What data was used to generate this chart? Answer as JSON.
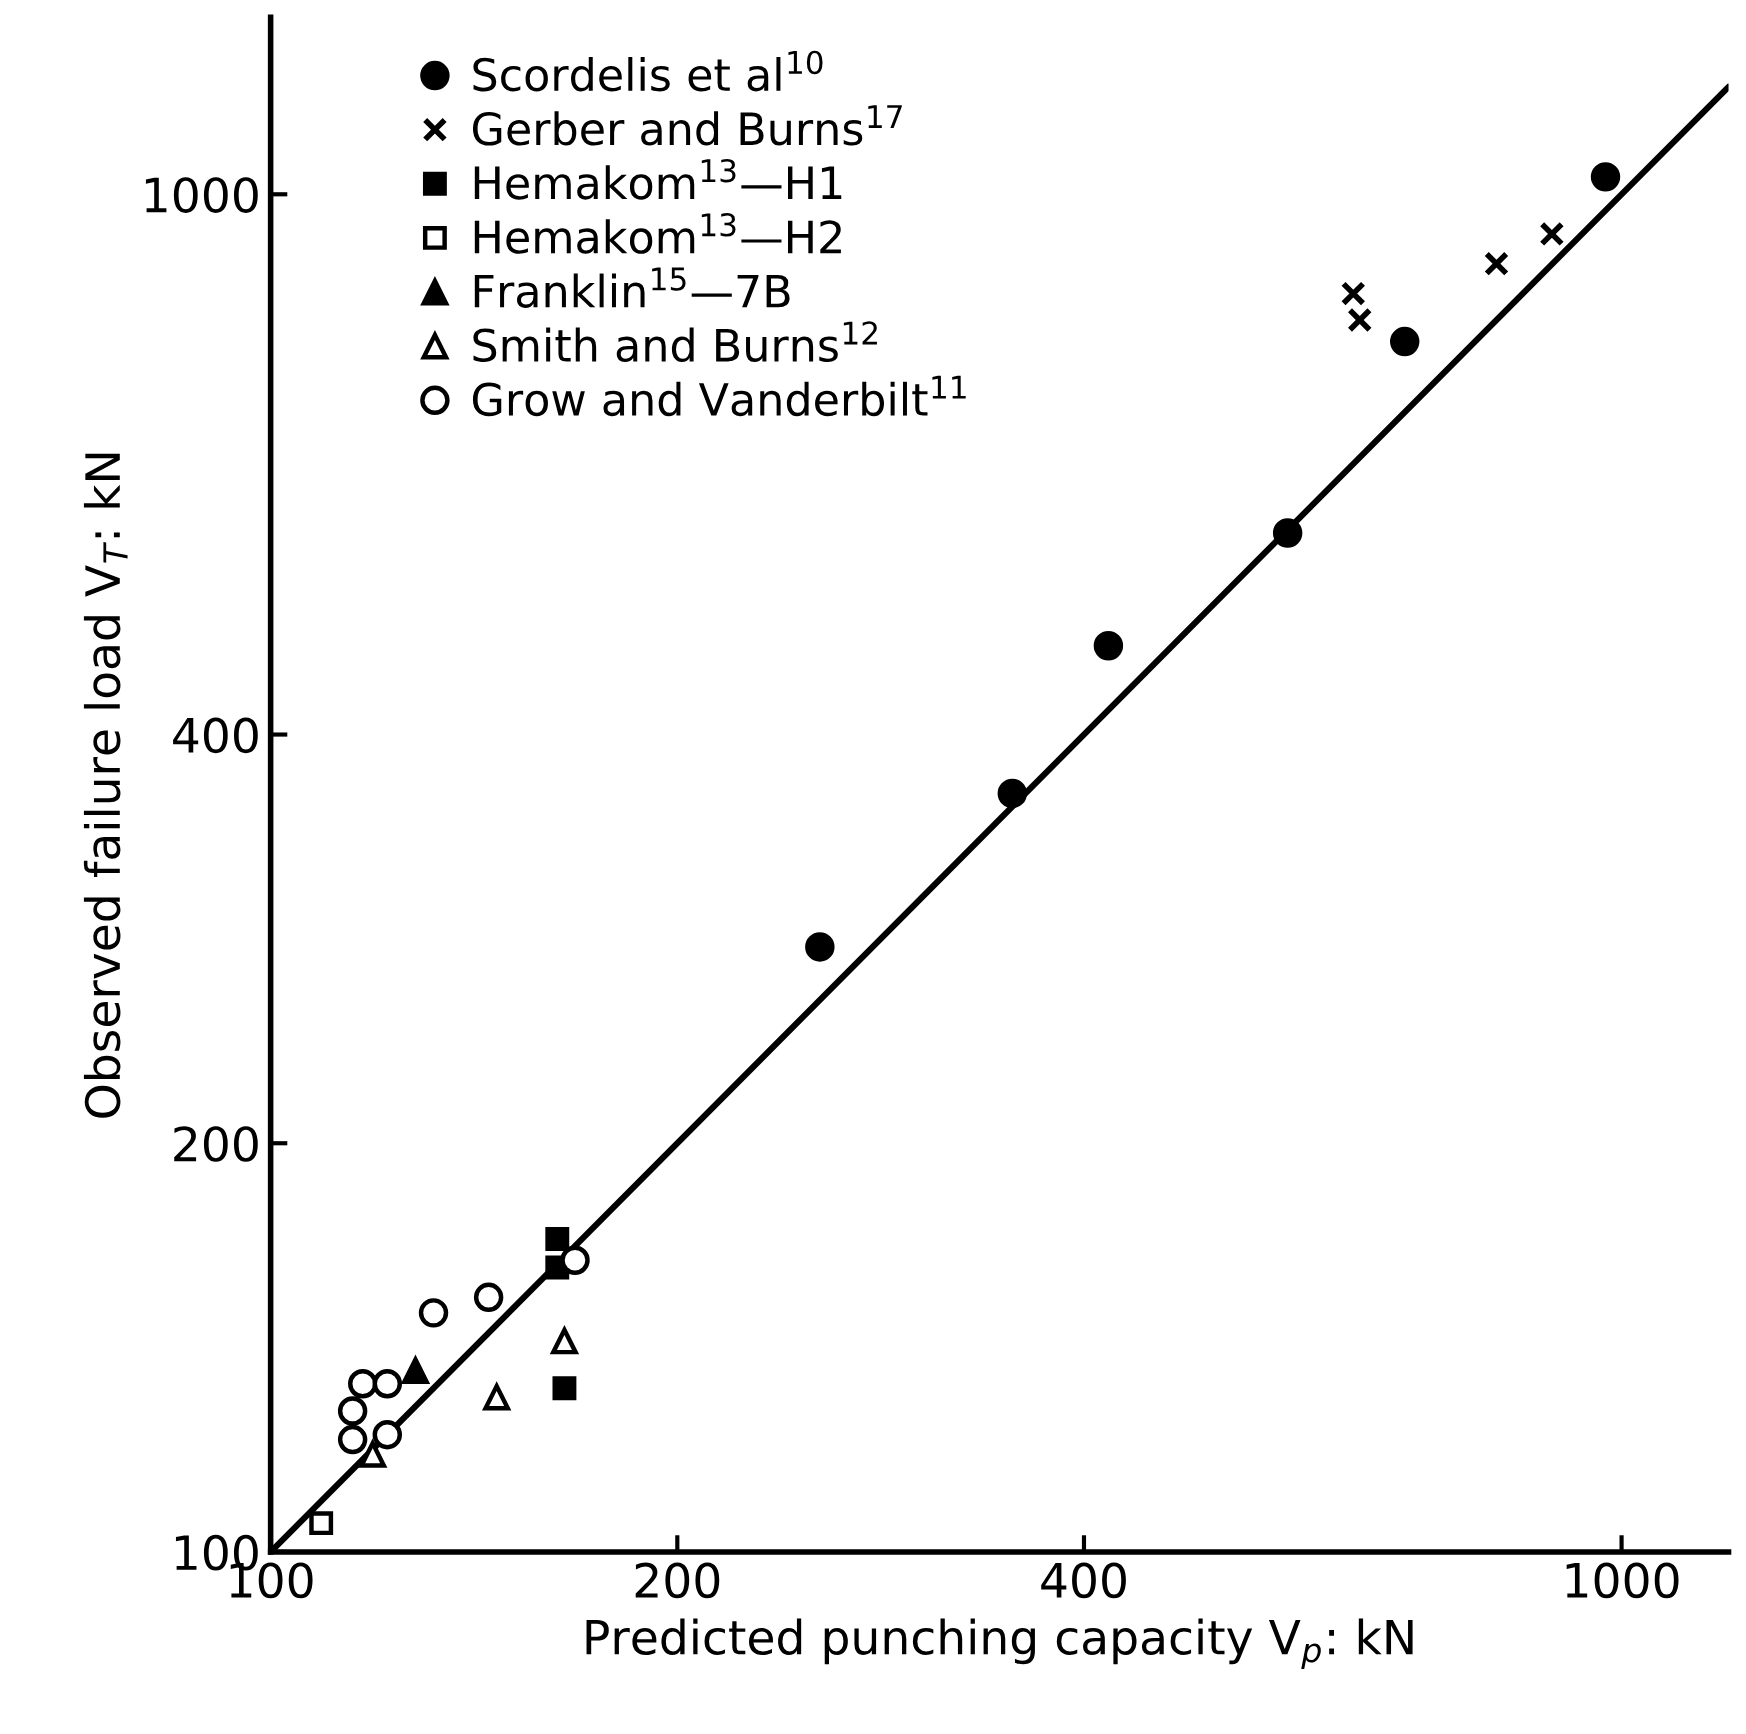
{
  "chart_data": {
    "type": "scatter",
    "xlabel": "Predicted punching capacity V$_{p}$: kN",
    "ylabel": "Observed failure load V$_{T}$: kN",
    "log": "xy",
    "xlim": [
      100,
      1200
    ],
    "ylim": [
      100,
      1350
    ],
    "xticks": [
      100,
      200,
      400,
      1000
    ],
    "yticks": [
      100,
      200,
      400,
      1000
    ],
    "grid": false,
    "legend": "top left",
    "series": [
      {
        "name": "Scordelis et al$^{10}$",
        "color": "#000000",
        "marker": "circle",
        "x": [
          255,
          354,
          417,
          566,
          691,
          973
        ],
        "values": [
          279,
          362,
          465,
          563,
          779,
          1030
        ]
      },
      {
        "name": "Gerber and Burns$^{17}$",
        "color": "#000000",
        "marker": "cross",
        "x": [
          633,
          640,
          808,
          888
        ],
        "values": [
          845,
          808,
          889,
          935
        ]
      },
      {
        "name": "Hemakom$^{13}$—H1",
        "color": "#000000",
        "marker": "square",
        "x": [
          163,
          163,
          165
        ],
        "values": [
          170,
          162,
          132
        ]
      },
      {
        "name": "Hemakom$^{13}$—H2",
        "color": "#ffffff",
        "marker": "square",
        "x": [
          109
        ],
        "values": [
          105
        ]
      },
      {
        "name": "Franklin$^{15}$—7B",
        "color": "#000000",
        "marker": "triangle",
        "x": [
          128
        ],
        "values": [
          136
        ]
      },
      {
        "name": "Smith and Burns$^{12}$",
        "color": "#ffffff",
        "marker": "triangle",
        "x": [
          147,
          165,
          119
        ],
        "values": [
          130,
          143,
          118
        ]
      },
      {
        "name": "Grow and Vanderbilt$^{11}$",
        "color": "#ffffff",
        "marker": "circle",
        "x": [
          132,
          145,
          117,
          122,
          115,
          115,
          122,
          168
        ],
        "values": [
          150,
          154,
          133,
          133,
          127,
          121,
          122,
          164
        ]
      },
      {
        "type": "line",
        "color": "#000000",
        "marker": "none",
        "x": [
          100,
          1200
        ],
        "values": [
          100,
          1200
        ]
      }
    ]
  }
}
